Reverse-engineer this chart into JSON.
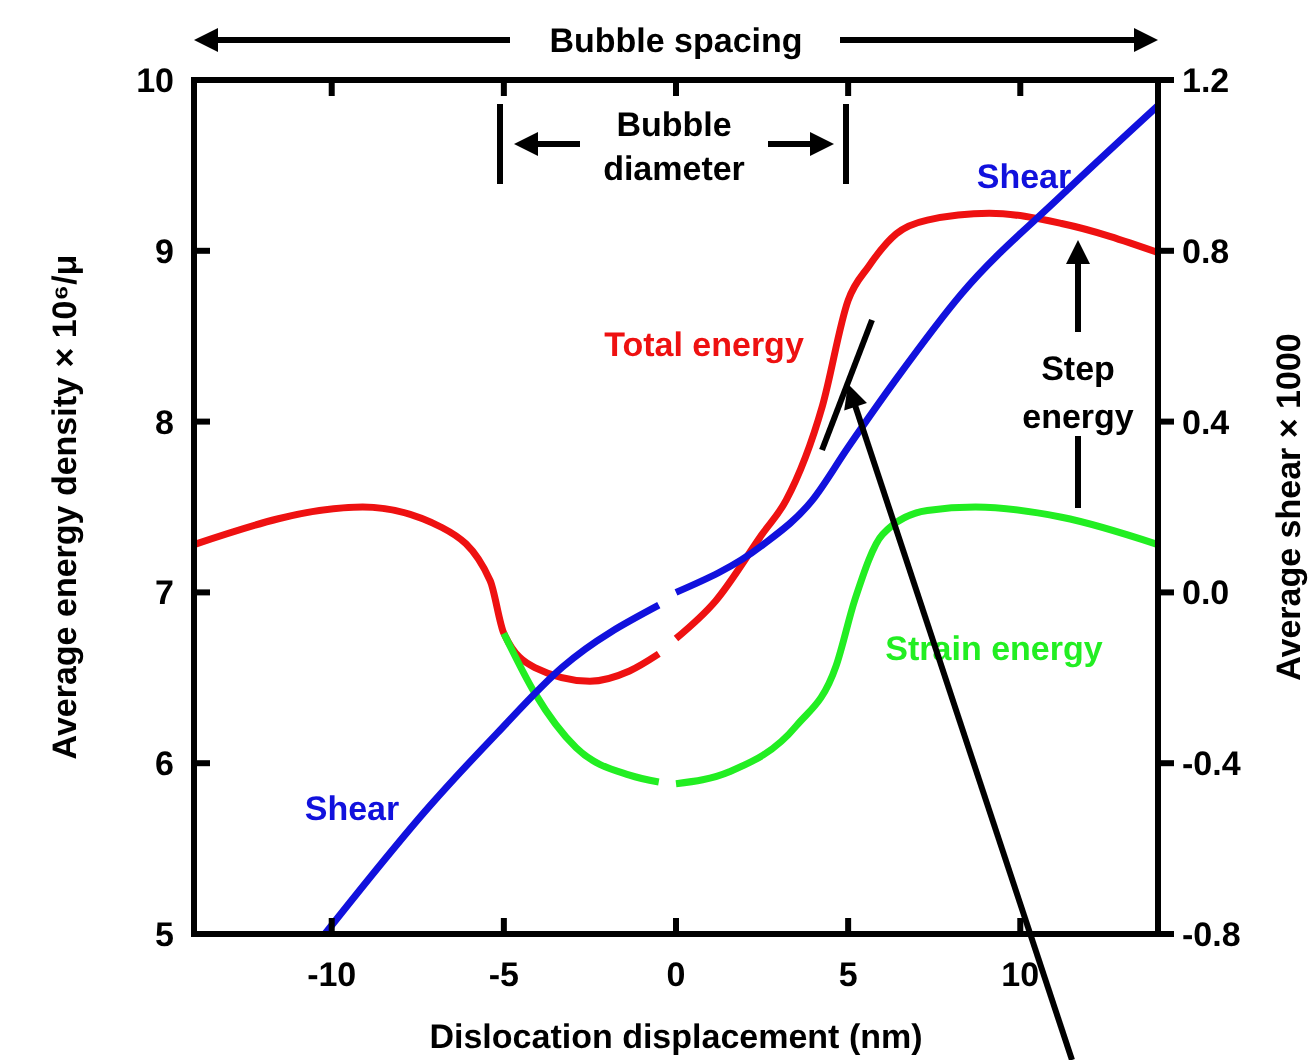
{
  "chart_data": {
    "type": "line",
    "xlabel": "Dislocation displacement (nm)",
    "ylabel": "Average energy density × 10⁶/μ",
    "y2label": "Average shear × 1000",
    "xlim": [
      -14,
      14
    ],
    "xticks": [
      -10,
      -5,
      0,
      5,
      10
    ],
    "ylim": [
      5,
      10
    ],
    "yticks": [
      5,
      6,
      7,
      8,
      9,
      10
    ],
    "y2lim": [
      -0.8,
      1.2
    ],
    "y2ticks": [
      -0.8,
      -0.4,
      {
        "value": 0,
        "label": "0.0"
      },
      0.4,
      0.8,
      1.2
    ],
    "legend": false,
    "grid": false,
    "marker": "none",
    "line_style": "solid",
    "annotations": [
      "Bubble spacing",
      "Bubble diameter",
      "Step energy"
    ],
    "series": [
      {
        "name": "Total energy",
        "color": "#ee1111",
        "x": [
          -14,
          -9.1,
          -6.8,
          -5.4,
          -5,
          -4.1,
          -2.5,
          -1.35,
          -0.5,
          -0.25,
          0,
          1.15,
          2.5,
          3.2,
          4.25,
          5,
          5.6,
          6.4,
          7.3,
          9.1,
          11.2,
          14
        ],
        "values": [
          7.28,
          7.5,
          7.38,
          7.07,
          6.76,
          6.56,
          6.48,
          6.54,
          6.64,
          null,
          6.73,
          6.95,
          7.34,
          7.54,
          8.09,
          8.71,
          8.91,
          9.1,
          9.18,
          9.22,
          9.16,
          8.99
        ]
      },
      {
        "name": "Strain energy",
        "color": "#22ee22",
        "x": [
          -5,
          -4.1,
          -2.9,
          -1.35,
          -0.5,
          -0.25,
          0,
          1.55,
          3.5,
          4.65,
          5.2,
          6,
          7.3,
          8.7,
          11.2,
          14
        ],
        "values": [
          6.76,
          6.41,
          6.09,
          5.93,
          5.89,
          null,
          5.88,
          5.95,
          6.22,
          6.57,
          6.96,
          7.34,
          7.48,
          7.5,
          7.44,
          7.28
        ]
      },
      {
        "name": "Shear",
        "color": "#1111dd",
        "axis": "y2",
        "x": [
          -10.2,
          -7.15,
          -5.2,
          -3.3,
          -0.5,
          -0.25,
          0,
          2.5,
          3.95,
          5,
          6.4,
          8.3,
          11.2,
          14
        ],
        "values": [
          -0.8,
          -0.5,
          -0.33,
          -0.175,
          -0.03,
          null,
          0,
          0.11,
          0.215,
          0.34,
          0.5,
          0.7,
          0.93,
          1.14
        ]
      }
    ]
  }
}
